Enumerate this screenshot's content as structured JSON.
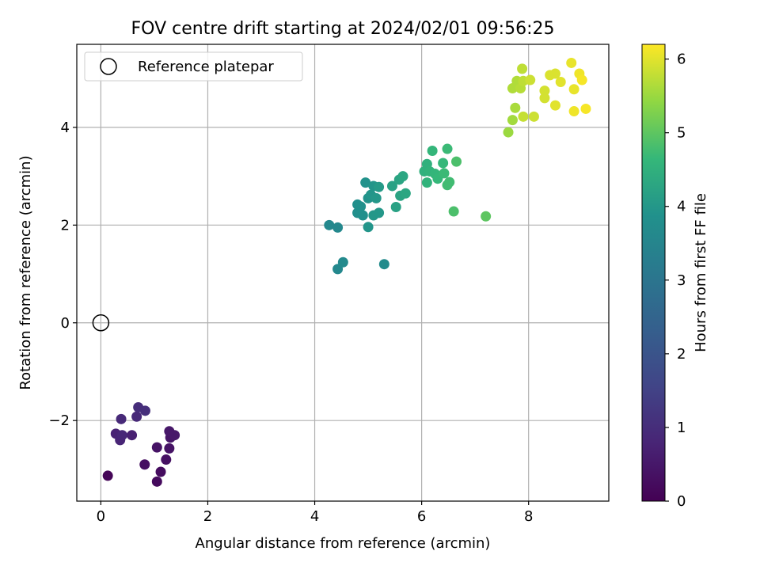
{
  "chart_data": {
    "type": "scatter",
    "title": "FOV centre drift starting at 2024/02/01 09:56:25",
    "xlabel": "Angular distance from reference (arcmin)",
    "ylabel": "Rotation from reference (arcmin)",
    "colorbar_label": "Hours from first FF file",
    "colormap": "viridis",
    "xlim": [
      -0.45,
      9.5
    ],
    "ylim": [
      -3.65,
      5.7
    ],
    "clim": [
      0,
      6.2
    ],
    "x_ticks": [
      0,
      2,
      4,
      6,
      8
    ],
    "y_ticks": [
      -2,
      0,
      2,
      4
    ],
    "colorbar_ticks": [
      0,
      1,
      2,
      3,
      4,
      5,
      6
    ],
    "grid": true,
    "legend": {
      "position": "top-left",
      "entries": [
        "Reference platepar"
      ]
    },
    "reference_point": {
      "x": 0,
      "y": 0
    },
    "points": [
      [
        0.13,
        -3.13,
        0.1
      ],
      [
        1.05,
        -3.25,
        0.2
      ],
      [
        1.12,
        -3.05,
        0.25
      ],
      [
        0.82,
        -2.9,
        0.3
      ],
      [
        1.22,
        -2.8,
        0.35
      ],
      [
        1.05,
        -2.55,
        0.4
      ],
      [
        1.28,
        -2.57,
        0.4
      ],
      [
        1.3,
        -2.35,
        0.45
      ],
      [
        1.38,
        -2.3,
        0.5
      ],
      [
        1.28,
        -2.22,
        0.5
      ],
      [
        0.58,
        -2.3,
        0.7
      ],
      [
        0.28,
        -2.27,
        0.75
      ],
      [
        0.36,
        -2.4,
        0.8
      ],
      [
        0.4,
        -2.3,
        0.85
      ],
      [
        0.38,
        -1.97,
        0.9
      ],
      [
        0.67,
        -1.92,
        0.9
      ],
      [
        0.7,
        -1.73,
        1.0
      ],
      [
        0.83,
        -1.8,
        1.05
      ],
      [
        4.27,
        2.0,
        3.6
      ],
      [
        4.43,
        1.95,
        3.6
      ],
      [
        4.43,
        1.1,
        3.6
      ],
      [
        4.53,
        1.24,
        3.65
      ],
      [
        5.3,
        1.2,
        3.7
      ],
      [
        4.8,
        2.25,
        3.8
      ],
      [
        4.8,
        2.42,
        3.8
      ],
      [
        4.9,
        2.2,
        3.85
      ],
      [
        4.86,
        2.38,
        3.85
      ],
      [
        4.95,
        2.87,
        3.9
      ],
      [
        5.0,
        2.55,
        3.9
      ],
      [
        5.05,
        2.62,
        3.95
      ],
      [
        5.1,
        2.8,
        3.95
      ],
      [
        5.0,
        1.96,
        3.95
      ],
      [
        5.1,
        2.2,
        4.0
      ],
      [
        5.15,
        2.55,
        4.0
      ],
      [
        5.2,
        2.25,
        4.0
      ],
      [
        5.2,
        2.78,
        4.05
      ],
      [
        5.45,
        2.8,
        4.2
      ],
      [
        5.52,
        2.37,
        4.2
      ],
      [
        5.58,
        2.93,
        4.25
      ],
      [
        5.6,
        2.6,
        4.25
      ],
      [
        5.65,
        3.0,
        4.3
      ],
      [
        5.7,
        2.65,
        4.3
      ],
      [
        6.05,
        3.1,
        4.5
      ],
      [
        6.1,
        3.25,
        4.5
      ],
      [
        6.1,
        2.87,
        4.55
      ],
      [
        6.15,
        3.1,
        4.55
      ],
      [
        6.2,
        3.52,
        4.6
      ],
      [
        6.25,
        3.05,
        4.6
      ],
      [
        6.3,
        2.95,
        4.65
      ],
      [
        6.4,
        3.27,
        4.65
      ],
      [
        6.42,
        3.06,
        4.7
      ],
      [
        6.48,
        3.56,
        4.7
      ],
      [
        6.48,
        2.82,
        4.75
      ],
      [
        6.52,
        2.88,
        4.75
      ],
      [
        6.6,
        2.28,
        4.85
      ],
      [
        6.65,
        3.3,
        4.85
      ],
      [
        7.2,
        2.18,
        5.0
      ],
      [
        7.62,
        3.9,
        5.5
      ],
      [
        7.7,
        4.15,
        5.55
      ],
      [
        7.75,
        4.4,
        5.6
      ],
      [
        7.7,
        4.8,
        5.65
      ],
      [
        7.78,
        4.95,
        5.65
      ],
      [
        7.85,
        4.8,
        5.7
      ],
      [
        7.88,
        5.2,
        5.75
      ],
      [
        7.9,
        4.95,
        5.75
      ],
      [
        7.9,
        4.22,
        5.8
      ],
      [
        8.03,
        4.97,
        5.85
      ],
      [
        8.1,
        4.22,
        5.85
      ],
      [
        8.3,
        4.75,
        5.9
      ],
      [
        8.3,
        4.6,
        5.9
      ],
      [
        8.4,
        5.07,
        5.95
      ],
      [
        8.5,
        5.1,
        5.95
      ],
      [
        8.5,
        4.45,
        6.0
      ],
      [
        8.6,
        4.93,
        6.0
      ],
      [
        8.8,
        5.32,
        6.05
      ],
      [
        8.85,
        4.78,
        6.05
      ],
      [
        8.85,
        4.33,
        6.1
      ],
      [
        8.95,
        5.1,
        6.1
      ],
      [
        9.0,
        4.97,
        6.15
      ],
      [
        9.07,
        4.38,
        6.15
      ]
    ]
  }
}
